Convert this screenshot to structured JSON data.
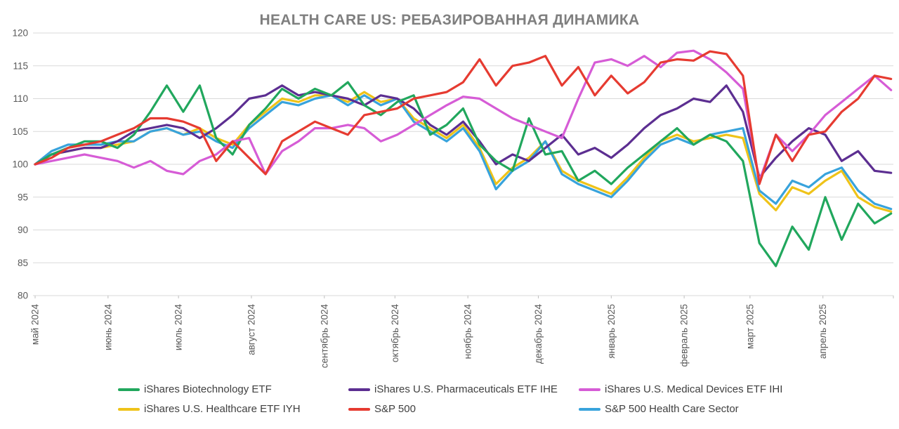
{
  "chart_data": {
    "type": "line",
    "title": "HEALTH CARE US: РЕБАЗИРОВАННАЯ ДИНАМИКА",
    "ylabel": "",
    "xlabel": "",
    "ylim": [
      80,
      120
    ],
    "y_ticks": [
      80,
      85,
      90,
      95,
      100,
      105,
      110,
      115,
      120
    ],
    "grid": "horizontal",
    "legend_position": "bottom",
    "baseline_value": 100,
    "x_unit": "weeks since 2024-05-01",
    "xlim_weeks": [
      0,
      52.14
    ],
    "x_step_weeks": 1,
    "x_ticks": [
      {
        "pos": 0.0,
        "label": "май 2024"
      },
      {
        "pos": 4.43,
        "label": "июнь 2024"
      },
      {
        "pos": 8.71,
        "label": "июль 2024"
      },
      {
        "pos": 13.14,
        "label": "август 2024"
      },
      {
        "pos": 17.57,
        "label": "сентябрь 2024"
      },
      {
        "pos": 21.86,
        "label": "октябрь 2024"
      },
      {
        "pos": 26.29,
        "label": "ноябрь 2024"
      },
      {
        "pos": 30.57,
        "label": "декабрь 2024"
      },
      {
        "pos": 35.0,
        "label": "январь 2025"
      },
      {
        "pos": 39.43,
        "label": "февраль 2025"
      },
      {
        "pos": 43.43,
        "label": "март 2025"
      },
      {
        "pos": 47.86,
        "label": "апрель 2025"
      }
    ],
    "legend_rows": [
      [
        0,
        1,
        2
      ],
      [
        3,
        4,
        5
      ]
    ],
    "series": [
      {
        "name": "iShares Biotechnology ETF",
        "color": "#21a75d",
        "values": [
          100,
          101.5,
          102.5,
          103.5,
          103.5,
          102.5,
          104.5,
          108,
          112,
          108,
          112,
          104,
          101.5,
          106,
          108.5,
          111.5,
          110,
          111.5,
          110.5,
          112.5,
          109,
          107.5,
          109.5,
          110.5,
          104.5,
          106,
          108.5,
          103,
          100.5,
          99,
          107,
          101.5,
          102,
          97.5,
          99,
          97,
          99.5,
          101.5,
          103.5,
          105.5,
          103,
          104.5,
          103.5,
          100.5,
          88,
          84.5,
          90.5,
          87,
          95,
          88.5,
          94,
          91,
          92.5
        ]
      },
      {
        "name": "iShares U.S. Pharmaceuticals ETF IHE",
        "color": "#5c2e91",
        "values": [
          100,
          101.5,
          102,
          102.5,
          102.5,
          103.5,
          105,
          105.5,
          106,
          105.5,
          104,
          105.5,
          107.5,
          110,
          110.5,
          112,
          110.5,
          111,
          110.5,
          110,
          109,
          110.5,
          110,
          108.5,
          106,
          104.5,
          106.5,
          103.5,
          100,
          101.5,
          100.5,
          102.5,
          104.5,
          101.5,
          102.5,
          101,
          103,
          105.5,
          107.5,
          108.5,
          110,
          109.5,
          112,
          108,
          98,
          101,
          103.5,
          105.5,
          104.5,
          100.5,
          102,
          99,
          98.7
        ]
      },
      {
        "name": "iShares U.S. Medical Devices ETF IHI",
        "color": "#d65cd6",
        "values": [
          100,
          100.5,
          101,
          101.5,
          101,
          100.5,
          99.5,
          100.5,
          99,
          98.5,
          100.5,
          101.5,
          103.5,
          104,
          98.5,
          102,
          103.5,
          105.5,
          105.5,
          106,
          105.5,
          103.5,
          104.5,
          106,
          107.5,
          109,
          110.3,
          110,
          108.5,
          107,
          106,
          105,
          104,
          110,
          115.5,
          116,
          115,
          116.5,
          114.8,
          117,
          117.3,
          116,
          114,
          111.5,
          97.5,
          104.5,
          102,
          104.5,
          107.5,
          109.5,
          111.5,
          113.5,
          111.3
        ]
      },
      {
        "name": "iShares U.S. Healthcare ETF IYH",
        "color": "#efc319",
        "values": [
          100,
          101.5,
          102,
          102.5,
          102.5,
          103,
          103.5,
          105,
          105.5,
          104.5,
          105.5,
          104,
          103,
          106,
          108,
          110,
          109.5,
          110.5,
          110.5,
          109.5,
          111,
          109.5,
          110,
          107,
          105.5,
          104,
          106,
          102.5,
          97,
          99.5,
          101,
          103.5,
          99,
          97.5,
          96.5,
          95.5,
          98,
          101,
          103.5,
          104.5,
          103.5,
          104,
          104.5,
          104,
          95.5,
          93,
          96.5,
          95.5,
          97.5,
          99,
          95,
          93.5,
          92.8
        ]
      },
      {
        "name": "S&P 500",
        "color": "#e63b31",
        "values": [
          100,
          101,
          102.5,
          103,
          103.5,
          104.5,
          105.5,
          107,
          107,
          106.5,
          105.5,
          100.5,
          103.5,
          101,
          98.5,
          103.5,
          105,
          106.5,
          105.5,
          104.5,
          107.5,
          108,
          108.5,
          110,
          110.5,
          111,
          112.5,
          116,
          112,
          115,
          115.5,
          116.5,
          112,
          114.8,
          110.5,
          113.5,
          110.8,
          112.5,
          115.5,
          116,
          115.8,
          117.2,
          116.8,
          113.5,
          97,
          104.5,
          100.5,
          104.5,
          105,
          108,
          110,
          113.5,
          113
        ]
      },
      {
        "name": "S&P 500 Health Care Sector",
        "color": "#38a3dc",
        "values": [
          100,
          102,
          103,
          103,
          103,
          103.5,
          103.5,
          105,
          105.5,
          104.5,
          105,
          103.5,
          102.5,
          105.5,
          107.5,
          109.5,
          109,
          110,
          110.5,
          109,
          110.5,
          109,
          110,
          106.5,
          105,
          103.5,
          105.5,
          102,
          96.2,
          99,
          100.5,
          103.5,
          98.5,
          97,
          96,
          95,
          97.5,
          100.5,
          103,
          104,
          103,
          104.5,
          105,
          105.5,
          96,
          94,
          97.5,
          96.5,
          98.5,
          99.5,
          96,
          94,
          93.2
        ]
      }
    ],
    "colors": {
      "title_text": "#7f7f7f",
      "axis_tick_text": "#595959",
      "legend_text": "#404040",
      "gridline": "#d9d9d9",
      "tick_mark": "#bfbfbf",
      "background": "#ffffff"
    }
  }
}
